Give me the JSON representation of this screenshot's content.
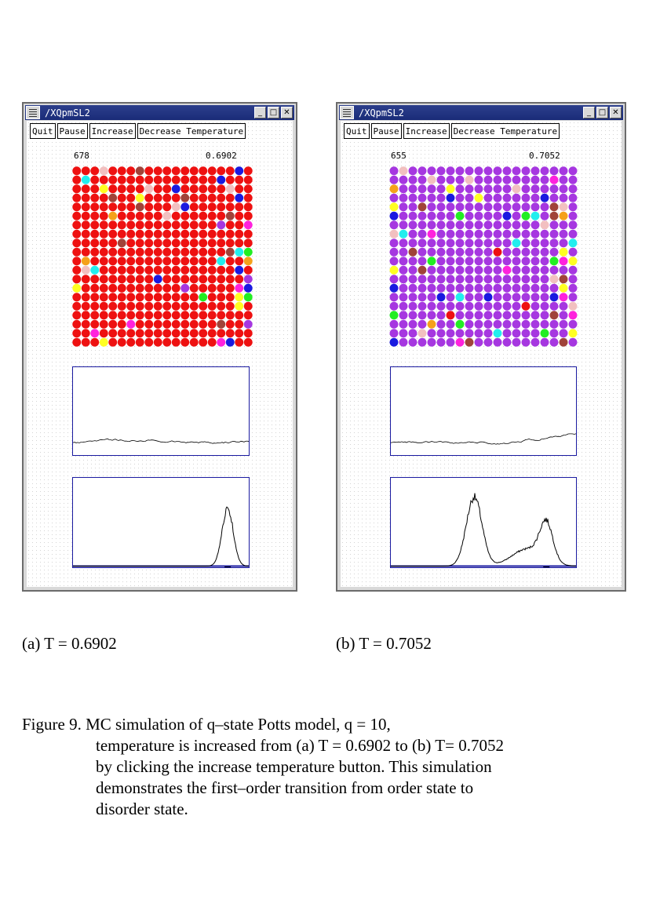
{
  "windows": [
    {
      "id": "a",
      "title": "/XQpmSL2",
      "buttons": [
        "Quit",
        "Pause",
        "Increase",
        "Decrease Temperature"
      ],
      "step": "678",
      "temperature": "0.6902",
      "ordered_color": "red",
      "lattice_size": 20,
      "dominant_color": "#ee1111"
    },
    {
      "id": "b",
      "title": "/XQpmSL2",
      "buttons": [
        "Quit",
        "Pause",
        "Increase",
        "Decrease Temperature"
      ],
      "step": "655",
      "temperature": "0.7052",
      "ordered_color": "purple",
      "lattice_size": 20,
      "dominant_color": "#a637e0"
    }
  ],
  "captions": {
    "a": "(a) T = 0.6902",
    "b": "(b) T = 0.7052"
  },
  "figure_caption": {
    "line1": "Figure 9. MC simulation of q–state Potts model, q = 10,",
    "line2": "temperature is increased from (a) T = 0.6902 to (b) T= 0.7052",
    "line3": "by clicking the increase temperature button. This simulation",
    "line4": "demonstrates the first–order transition from order state to",
    "line5": "disorder state."
  },
  "colors": {
    "title_bar": "#1a2b78",
    "plot_border": "#1a1aa0",
    "spin_palette": [
      "#ee1111",
      "#a637e0",
      "#f5a11a",
      "#ffff22",
      "#1a1ae0",
      "#ff22dd",
      "#22ee22",
      "#22eeee",
      "#f2c0c0",
      "#a0433a"
    ]
  }
}
